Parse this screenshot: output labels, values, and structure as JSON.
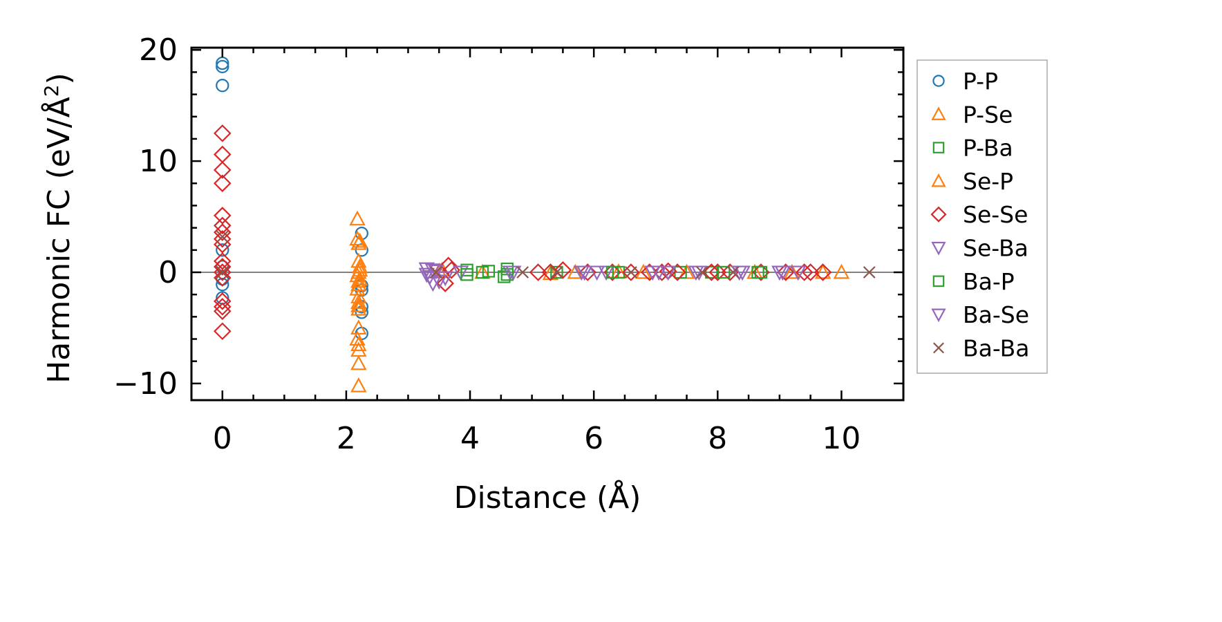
{
  "chart_data": {
    "type": "scatter",
    "title": "",
    "xlabel": "Distance (Å)",
    "ylabel": "Harmonic FC (eV/Å",
    "ylabel_superscript": "2",
    "ylabel_close": ")",
    "xlim": [
      -0.5,
      11.0
    ],
    "ylim": [
      -11.5,
      20.2
    ],
    "xticks": [
      0,
      2,
      4,
      6,
      8,
      10
    ],
    "xtick_labels": [
      "0",
      "2",
      "4",
      "6",
      "8",
      "10"
    ],
    "yticks": [
      -10,
      0,
      10,
      20
    ],
    "ytick_labels": [
      "−10",
      "0",
      "10",
      "20"
    ],
    "zero_line": 0,
    "grid": false,
    "legend_position": "outside-right",
    "series": [
      {
        "name": "P-P",
        "marker": "circle",
        "filled": false,
        "color": "#1f77b4",
        "x": [
          0,
          0,
          0,
          0,
          0,
          0,
          0,
          0,
          2.25,
          2.25,
          2.25,
          2.25,
          2.25,
          2.25,
          2.25
        ],
        "y": [
          18.8,
          18.5,
          16.8,
          2.0,
          0.5,
          -0.6,
          -1.1,
          -2.3,
          3.5,
          2.0,
          -1.2,
          -1.6,
          -3.1,
          -3.6,
          -5.5
        ]
      },
      {
        "name": "P-Se",
        "marker": "triangle-up",
        "filled": false,
        "color": "#ff7f0e",
        "x": [
          2.18,
          2.18,
          2.2,
          2.2,
          2.22,
          2.2,
          2.18,
          2.22,
          2.2,
          2.18,
          2.2,
          2.2,
          2.2,
          2.2,
          2.2,
          2.18,
          2.2,
          2.2,
          2.2,
          2.2,
          3.5,
          4.2,
          5.3,
          6.4,
          7.5,
          8.6,
          9.2,
          10.0
        ],
        "y": [
          4.8,
          3.0,
          2.6,
          1.0,
          0.5,
          0.0,
          -0.3,
          -0.6,
          -1.1,
          -1.5,
          -2.2,
          -2.7,
          -3.0,
          -3.3,
          -5.0,
          -6.0,
          -6.5,
          -7.0,
          -8.2,
          -10.2,
          0.1,
          0.0,
          -0.1,
          0.05,
          0.0,
          0.0,
          0.0,
          0.0
        ]
      },
      {
        "name": "P-Ba",
        "marker": "square",
        "filled": false,
        "color": "#2ca02c",
        "x": [
          3.95,
          4.2,
          4.55,
          4.6,
          5.4,
          6.4,
          7.4,
          7.9,
          8.65
        ],
        "y": [
          0.2,
          0.0,
          -0.4,
          0.3,
          0.0,
          0.0,
          0.0,
          0.0,
          0.0
        ]
      },
      {
        "name": "Se-P",
        "marker": "triangle-up",
        "filled": false,
        "color": "#ff7f0e",
        "x": [
          2.22,
          2.22,
          2.2,
          3.55,
          5.7,
          6.8,
          9.7
        ],
        "y": [
          2.8,
          0.2,
          -0.8,
          0.2,
          0.0,
          0.0,
          0.0
        ]
      },
      {
        "name": "Se-Se",
        "marker": "diamond",
        "filled": false,
        "color": "#d62728",
        "x": [
          0,
          0,
          0,
          0,
          0,
          0,
          0,
          0,
          0,
          0,
          0,
          0,
          0,
          0,
          0,
          0,
          0,
          3.6,
          3.65,
          3.7,
          5.1,
          5.3,
          5.5,
          5.9,
          6.3,
          6.6,
          6.9,
          7.1,
          7.2,
          7.35,
          7.9,
          8.0,
          8.2,
          8.7,
          9.1,
          9.4,
          9.5,
          9.7
        ],
        "y": [
          12.5,
          10.6,
          9.2,
          8.0,
          5.1,
          4.2,
          3.6,
          3.0,
          2.5,
          1.0,
          0.5,
          0.0,
          -0.5,
          -2.6,
          -3.1,
          -3.5,
          -5.3,
          -1.0,
          0.6,
          0.2,
          0.0,
          0.0,
          0.2,
          0.0,
          0.0,
          0.0,
          0.0,
          0.0,
          0.1,
          0.0,
          0.0,
          0.0,
          0.0,
          0.0,
          0.0,
          0.0,
          0.0,
          0.0
        ]
      },
      {
        "name": "Se-Ba",
        "marker": "triangle-down",
        "filled": false,
        "color": "#9467bd",
        "x": [
          3.3,
          3.35,
          3.4,
          3.45,
          3.85,
          4.65,
          5.8,
          6.2,
          7.05,
          7.7,
          8.4,
          9.0
        ],
        "y": [
          0.3,
          -0.4,
          -1.0,
          0.1,
          0.0,
          0.0,
          0.0,
          0.0,
          0.0,
          0.0,
          0.0,
          0.0
        ]
      },
      {
        "name": "Ba-P",
        "marker": "square",
        "filled": false,
        "color": "#2ca02c",
        "x": [
          3.95,
          4.3,
          4.6,
          6.3,
          8.1,
          8.7
        ],
        "y": [
          -0.2,
          0.1,
          -0.2,
          0.0,
          0.0,
          0.0
        ]
      },
      {
        "name": "Ba-Se",
        "marker": "triangle-down",
        "filled": false,
        "color": "#9467bd",
        "x": [
          3.3,
          3.4,
          3.5,
          3.6,
          4.7,
          5.85,
          6.05,
          6.95,
          7.2,
          7.65,
          8.35,
          9.05,
          9.3
        ],
        "y": [
          -0.2,
          0.2,
          -0.8,
          -0.5,
          0.0,
          0.0,
          0.0,
          0.0,
          0.0,
          0.0,
          0.0,
          0.0,
          0.0
        ]
      },
      {
        "name": "Ba-Ba",
        "marker": "x",
        "filled": false,
        "color": "#8c564b",
        "x": [
          0,
          0,
          3.45,
          4.85,
          5.4,
          6.6,
          7.75,
          8.25,
          10.45
        ],
        "y": [
          3.2,
          0.0,
          0.0,
          0.0,
          0.0,
          0.0,
          0.0,
          0.0,
          0.0
        ]
      }
    ]
  }
}
